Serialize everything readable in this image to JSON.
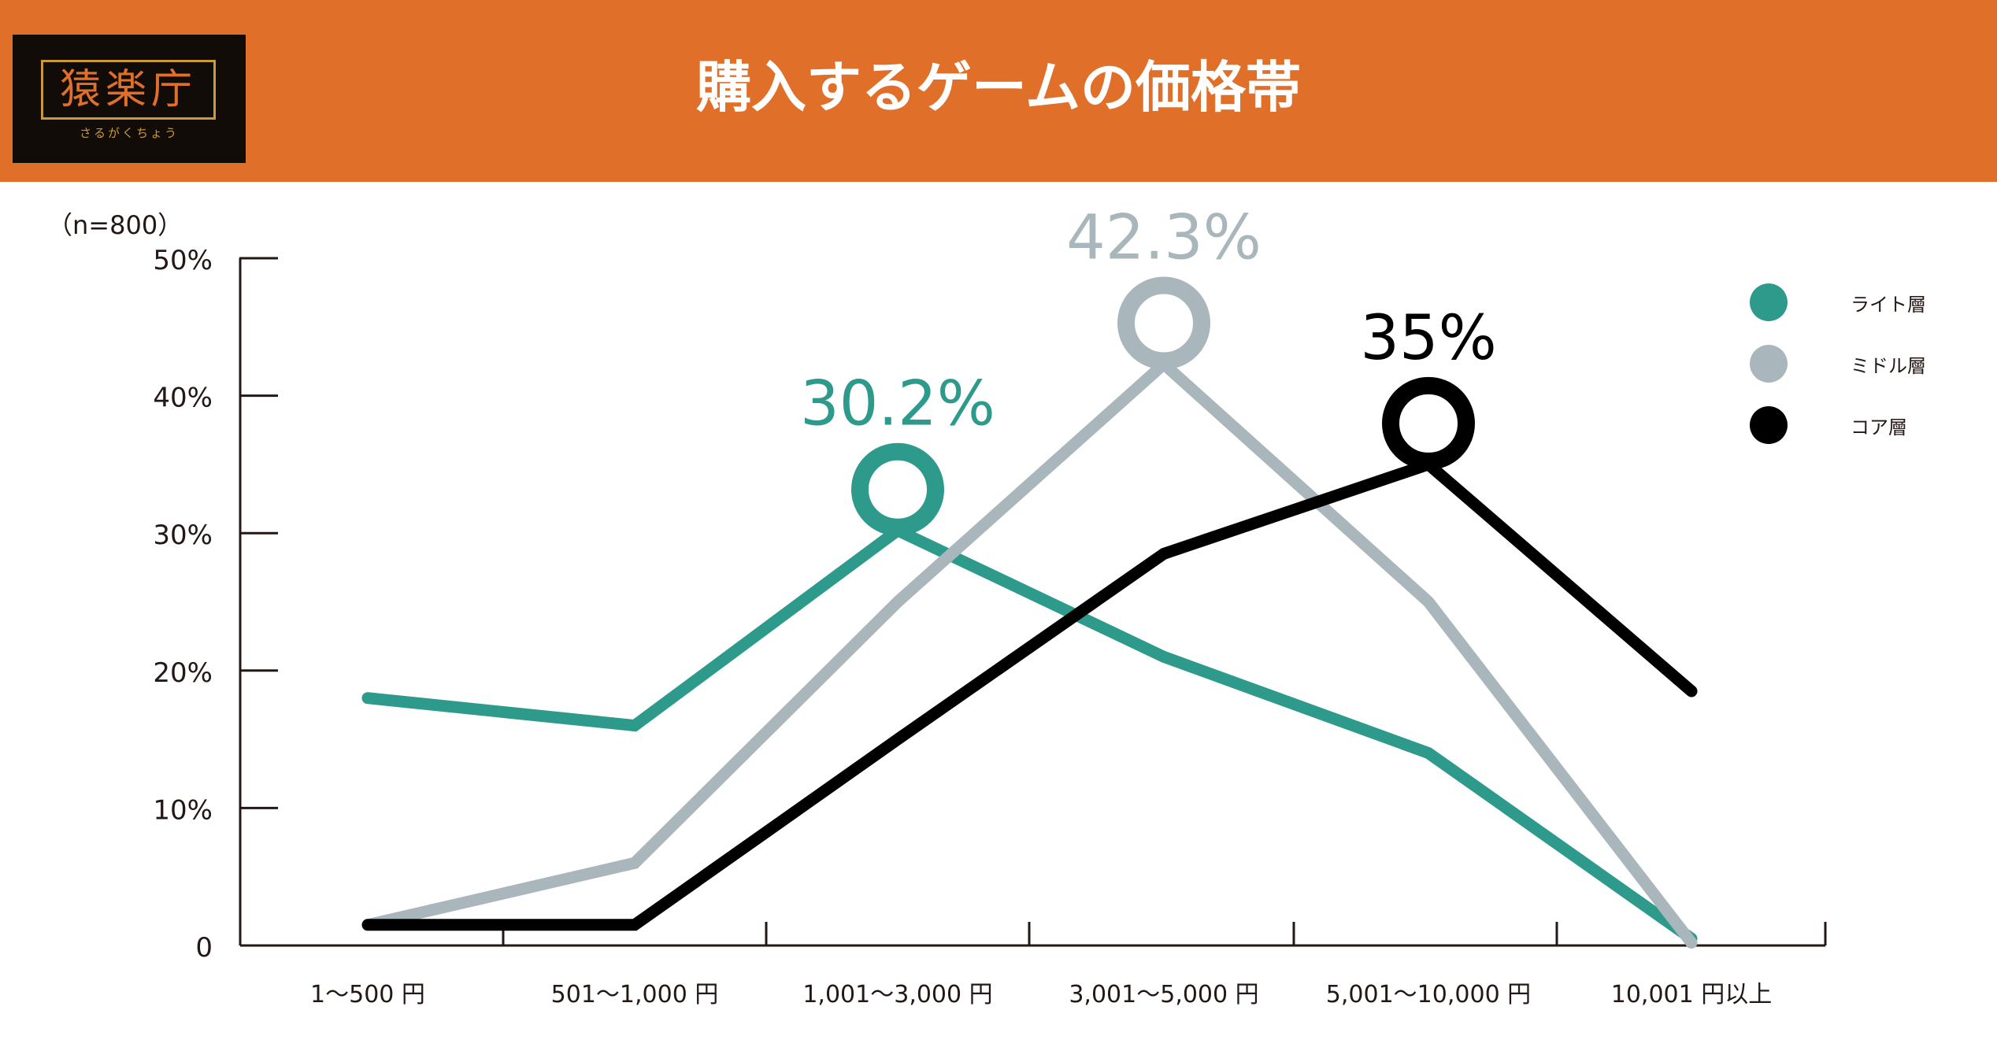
{
  "header": {
    "title": "購入するゲームの価格帯",
    "logo_text": "猿楽庁",
    "logo_sub": "さるがくちょう"
  },
  "colors": {
    "header_bg": "#e07029",
    "light": "#2e9a8b",
    "middle": "#a9b6bc",
    "core": "#000000",
    "axis": "#231815"
  },
  "chart_data": {
    "type": "line",
    "sample_note": "（n=800）",
    "categories": [
      "1〜500 円",
      "501〜1,000 円",
      "1,001〜3,000 円",
      "3,001〜5,000 円",
      "5,001〜10,000 円",
      "10,001 円以上"
    ],
    "y_ticks": [
      "0",
      "10%",
      "20%",
      "30%",
      "40%",
      "50%"
    ],
    "ylim": [
      0,
      50
    ],
    "grid": false,
    "legend_position": "top-right",
    "series": [
      {
        "name": "ライト層",
        "color": "#2e9a8b",
        "values": [
          18,
          16,
          30.2,
          21,
          14,
          0.5
        ],
        "peak_label": "30.2%",
        "peak_index": 2
      },
      {
        "name": "ミドル層",
        "color": "#a9b6bc",
        "values": [
          1.5,
          6,
          25,
          42.3,
          25,
          0.2
        ],
        "peak_label": "42.3%",
        "peak_index": 3
      },
      {
        "name": "コア層",
        "color": "#000000",
        "values": [
          1.5,
          1.5,
          15,
          28.5,
          35,
          18.5
        ],
        "peak_label": "35%",
        "peak_index": 4
      }
    ]
  }
}
